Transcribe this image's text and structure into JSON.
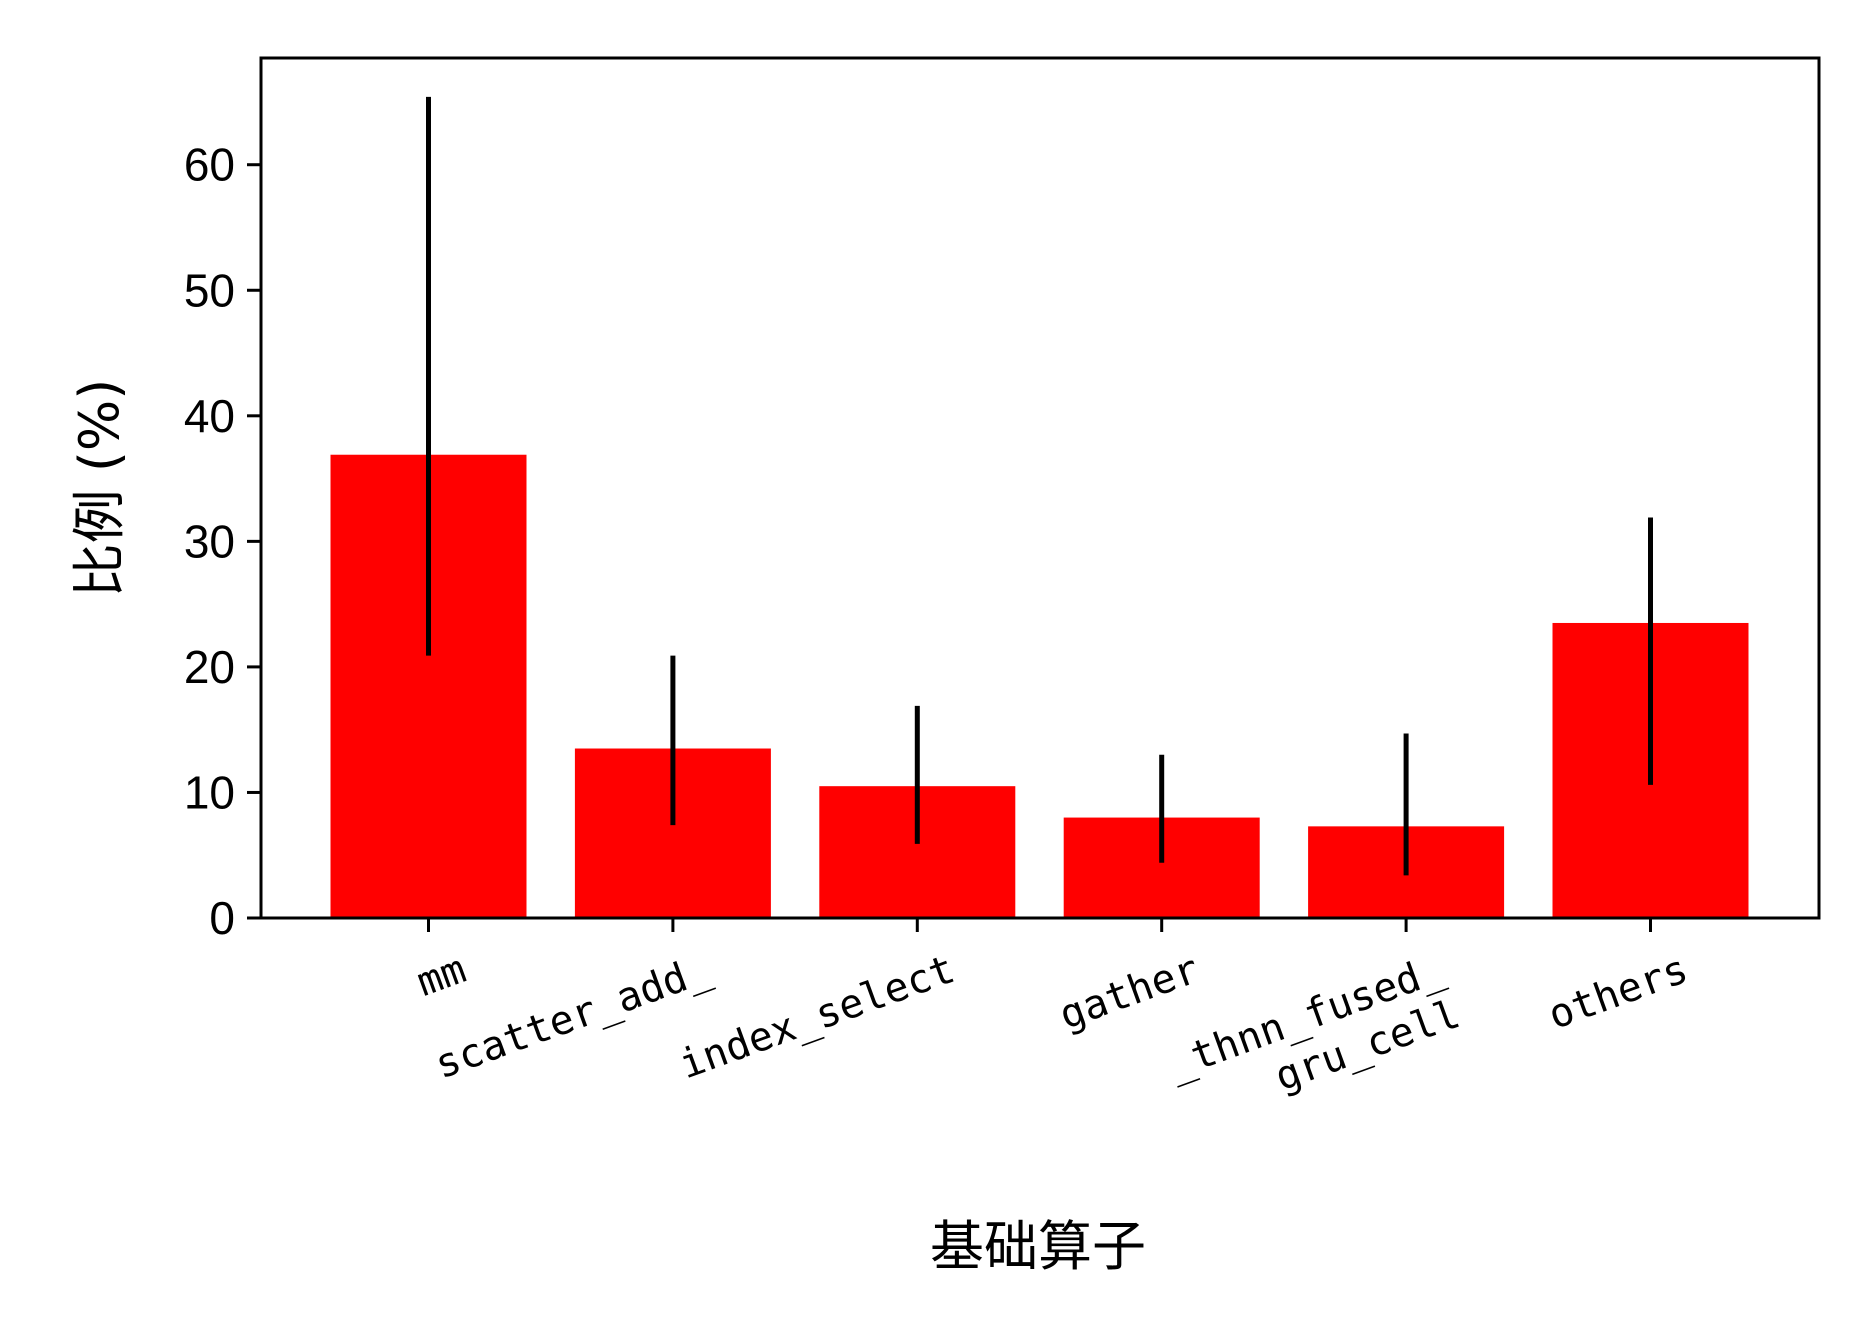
{
  "chart_data": {
    "type": "bar",
    "categories": [
      "mm",
      "scatter_add_",
      "index_select",
      "gather",
      "_thnn_fused_\ngru_cell",
      "others"
    ],
    "values": [
      36.9,
      13.5,
      10.5,
      8.0,
      7.3,
      23.5
    ],
    "error_low": [
      20.9,
      7.4,
      5.9,
      4.4,
      3.4,
      10.6
    ],
    "error_high": [
      65.4,
      20.9,
      16.9,
      13.0,
      14.7,
      31.9
    ],
    "xlabel": "基础算子",
    "ylabel": "比例 (%)",
    "ylim": [
      0,
      68.5
    ],
    "yticks": [
      0,
      10,
      20,
      30,
      40,
      50,
      60
    ],
    "bar_color": "#ff0000",
    "error_color": "#000000",
    "grid": false,
    "xtick_rotation": 20
  }
}
